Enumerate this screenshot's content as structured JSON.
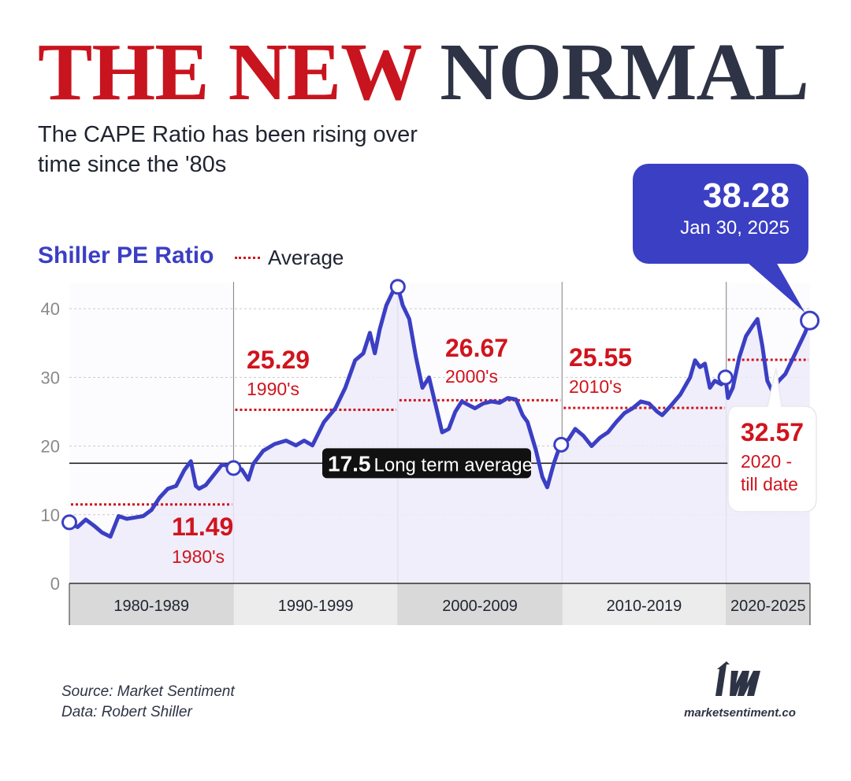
{
  "header": {
    "title_part1": "THE NEW",
    "title_part2": "NORMAL",
    "subtitle": "The CAPE Ratio has been rising over time since the '80s"
  },
  "legend": {
    "series_title": "Shiller PE Ratio",
    "average_label": "Average"
  },
  "callout": {
    "value": "38.28",
    "date": "Jan 30, 2025"
  },
  "footer": {
    "source": "Source: Market Sentiment",
    "data": "Data: Robert Shiller",
    "brand_url": "marketsentiment.co"
  },
  "colors": {
    "line": "#3b3fc4",
    "average": "#d0141e",
    "title_red": "#c8141e",
    "title_dark": "#2e3445"
  },
  "chart_data": {
    "type": "line",
    "series_name": "Shiller PE Ratio",
    "ylim": [
      0,
      43
    ],
    "yticks": [
      "0",
      "10",
      "20",
      "30",
      "40"
    ],
    "grid": true,
    "xlim": [
      1980,
      2025.1
    ],
    "series": [
      {
        "name": "Shiller PE Ratio",
        "x": [
          1980.0,
          1980.5,
          1981.0,
          1981.5,
          1982.0,
          1982.5,
          1983.0,
          1983.5,
          1984.0,
          1984.5,
          1985.0,
          1985.5,
          1986.0,
          1986.5,
          1987.0,
          1987.4,
          1987.7,
          1987.9,
          1988.3,
          1988.8,
          1989.3,
          1989.9,
          1990.5,
          1990.9,
          1991.2,
          1991.8,
          1992.5,
          1993.2,
          1993.8,
          1994.3,
          1994.8,
          1995.5,
          1996.2,
          1996.8,
          1997.4,
          1997.9,
          1998.3,
          1998.6,
          1998.9,
          1999.3,
          1999.7,
          2000.0,
          2000.3,
          2000.7,
          2001.1,
          2001.5,
          2001.9,
          2002.4,
          2002.7,
          2003.1,
          2003.5,
          2003.9,
          2004.3,
          2004.7,
          2005.2,
          2005.7,
          2006.2,
          2006.7,
          2007.2,
          2007.6,
          2007.9,
          2008.4,
          2008.8,
          2009.1,
          2009.5,
          2009.9,
          2010.4,
          2010.8,
          2011.3,
          2011.8,
          2012.3,
          2012.8,
          2013.3,
          2013.8,
          2014.3,
          2014.8,
          2015.3,
          2015.8,
          2016.1,
          2016.6,
          2017.2,
          2017.8,
          2018.1,
          2018.4,
          2018.7,
          2019.0,
          2019.3,
          2019.7,
          2019.95,
          2020.1,
          2020.4,
          2020.8,
          2021.2,
          2021.6,
          2021.9,
          2022.2,
          2022.5,
          2022.8,
          2023.2,
          2023.6,
          2024.0,
          2024.4,
          2024.8,
          2025.08
        ],
        "y": [
          8.9,
          8.2,
          9.3,
          8.4,
          7.4,
          6.8,
          9.8,
          9.4,
          9.6,
          9.8,
          10.7,
          12.5,
          13.8,
          14.2,
          16.5,
          17.8,
          14.2,
          13.8,
          14.3,
          15.8,
          17.3,
          17.0,
          16.6,
          15.1,
          17.4,
          19.3,
          20.3,
          20.8,
          20.1,
          20.8,
          20.1,
          23.5,
          25.5,
          28.5,
          32.5,
          33.5,
          36.5,
          33.5,
          37.0,
          40.5,
          42.5,
          43.2,
          40.5,
          38.5,
          33.0,
          28.5,
          30.0,
          25.0,
          22.0,
          22.5,
          25.0,
          26.5,
          26.0,
          25.5,
          26.2,
          26.5,
          26.3,
          27.0,
          26.8,
          24.5,
          23.5,
          19.5,
          15.5,
          14.0,
          17.5,
          20.2,
          21.0,
          22.5,
          21.5,
          20.0,
          21.2,
          22.0,
          23.5,
          24.8,
          25.5,
          26.5,
          26.2,
          25.0,
          24.5,
          25.8,
          27.5,
          30.0,
          32.5,
          31.5,
          32.0,
          28.5,
          29.5,
          29.0,
          30.0,
          27.0,
          28.5,
          33.0,
          36.0,
          37.5,
          38.5,
          34.5,
          29.5,
          28.0,
          29.5,
          30.5,
          32.5,
          34.5,
          36.5,
          38.28
        ]
      }
    ],
    "decade_bands": [
      {
        "label": "1980-1989",
        "start": 1980,
        "end": 1990,
        "average": 11.49,
        "average_label": "11.49",
        "decade_name": "1980's"
      },
      {
        "label": "1990-1999",
        "start": 1990,
        "end": 2000,
        "average": 25.29,
        "average_label": "25.29",
        "decade_name": "1990's"
      },
      {
        "label": "2000-2009",
        "start": 2000,
        "end": 2010,
        "average": 26.67,
        "average_label": "26.67",
        "decade_name": "2000's"
      },
      {
        "label": "2010-2019",
        "start": 2010,
        "end": 2020,
        "average": 25.55,
        "average_label": "25.55",
        "decade_name": "2010's"
      },
      {
        "label": "2020-2025",
        "start": 2020,
        "end": 2025.1,
        "average": 32.57,
        "average_label": "32.57",
        "decade_name": "2020 - till date"
      }
    ],
    "long_term_average": {
      "value": 17.5,
      "value_label": "17.5",
      "label": "Long term average"
    },
    "highlight_points": [
      {
        "x": 1980.0,
        "y": 8.9
      },
      {
        "x": 1990.0,
        "y": 16.8
      },
      {
        "x": 2000.0,
        "y": 43.2
      },
      {
        "x": 2009.95,
        "y": 20.2
      },
      {
        "x": 2019.95,
        "y": 30.0
      },
      {
        "x": 2025.08,
        "y": 38.28
      }
    ]
  }
}
